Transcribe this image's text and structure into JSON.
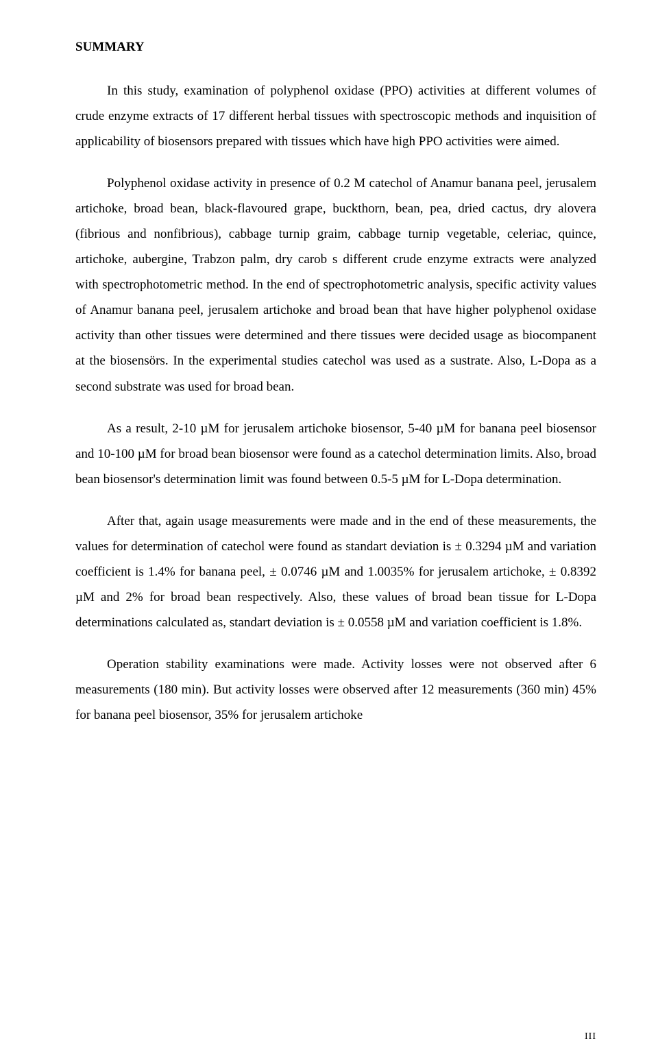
{
  "heading": "SUMMARY",
  "paragraphs": [
    "In this study, examination of polyphenol oxidase (PPO) activities at different volumes of crude enzyme extracts of 17 different  herbal tissues with spectroscopic methods and inquisition of applicability of biosensors prepared with tissues which have high PPO activities were aimed.",
    "Polyphenol oxidase activity in presence of 0.2 M catechol of Anamur banana peel, jerusalem artichoke, broad bean, black-flavoured grape, buckthorn, bean, pea, dried cactus, dry alovera (fibrious and nonfibrious), cabbage turnip  graim, cabbage turnip vegetable, celeriac, quince, artichoke, aubergine, Trabzon palm, dry carob s different crude enzyme extracts were analyzed with spectrophotometric method. In the end of spectrophotometric analysis, specific activity values of Anamur banana peel, jerusalem artichoke and broad bean that have higher polyphenol oxidase activity than other tissues were determined and there tissues were decided usage as biocompanent at the biosensörs. In the experimental studies catechol was used as a sustrate. Also, L-Dopa as a second substrate was used for broad bean.",
    "As a result, 2-10 µM for jerusalem artichoke biosensor, 5-40 µM for banana peel biosensor and 10-100 µM for broad bean biosensor were found as a catechol determination limits. Also, broad bean biosensor's determination limit was found between 0.5-5 µM for L-Dopa determination.",
    "After that, again usage measurements were made and in the end of these measurements, the values for determination of catechol were found as standart deviation is ± 0.3294 µM and variation coefficient is 1.4% for banana peel, ± 0.0746 µM and 1.0035% for jerusalem artichoke, ± 0.8392 µM and 2% for broad bean respectively. Also, these values of broad bean tissue for L-Dopa determinations calculated as, standart deviation is ± 0.0558 µM and variation coefficient is 1.8%.",
    "Operation stability examinations were made. Activity losses were not observed after 6 measurements (180 min). But activity losses were observed after 12 measurements (360 min) 45% for banana peel biosensor, 35% for jerusalem artichoke"
  ],
  "page_number": "III"
}
